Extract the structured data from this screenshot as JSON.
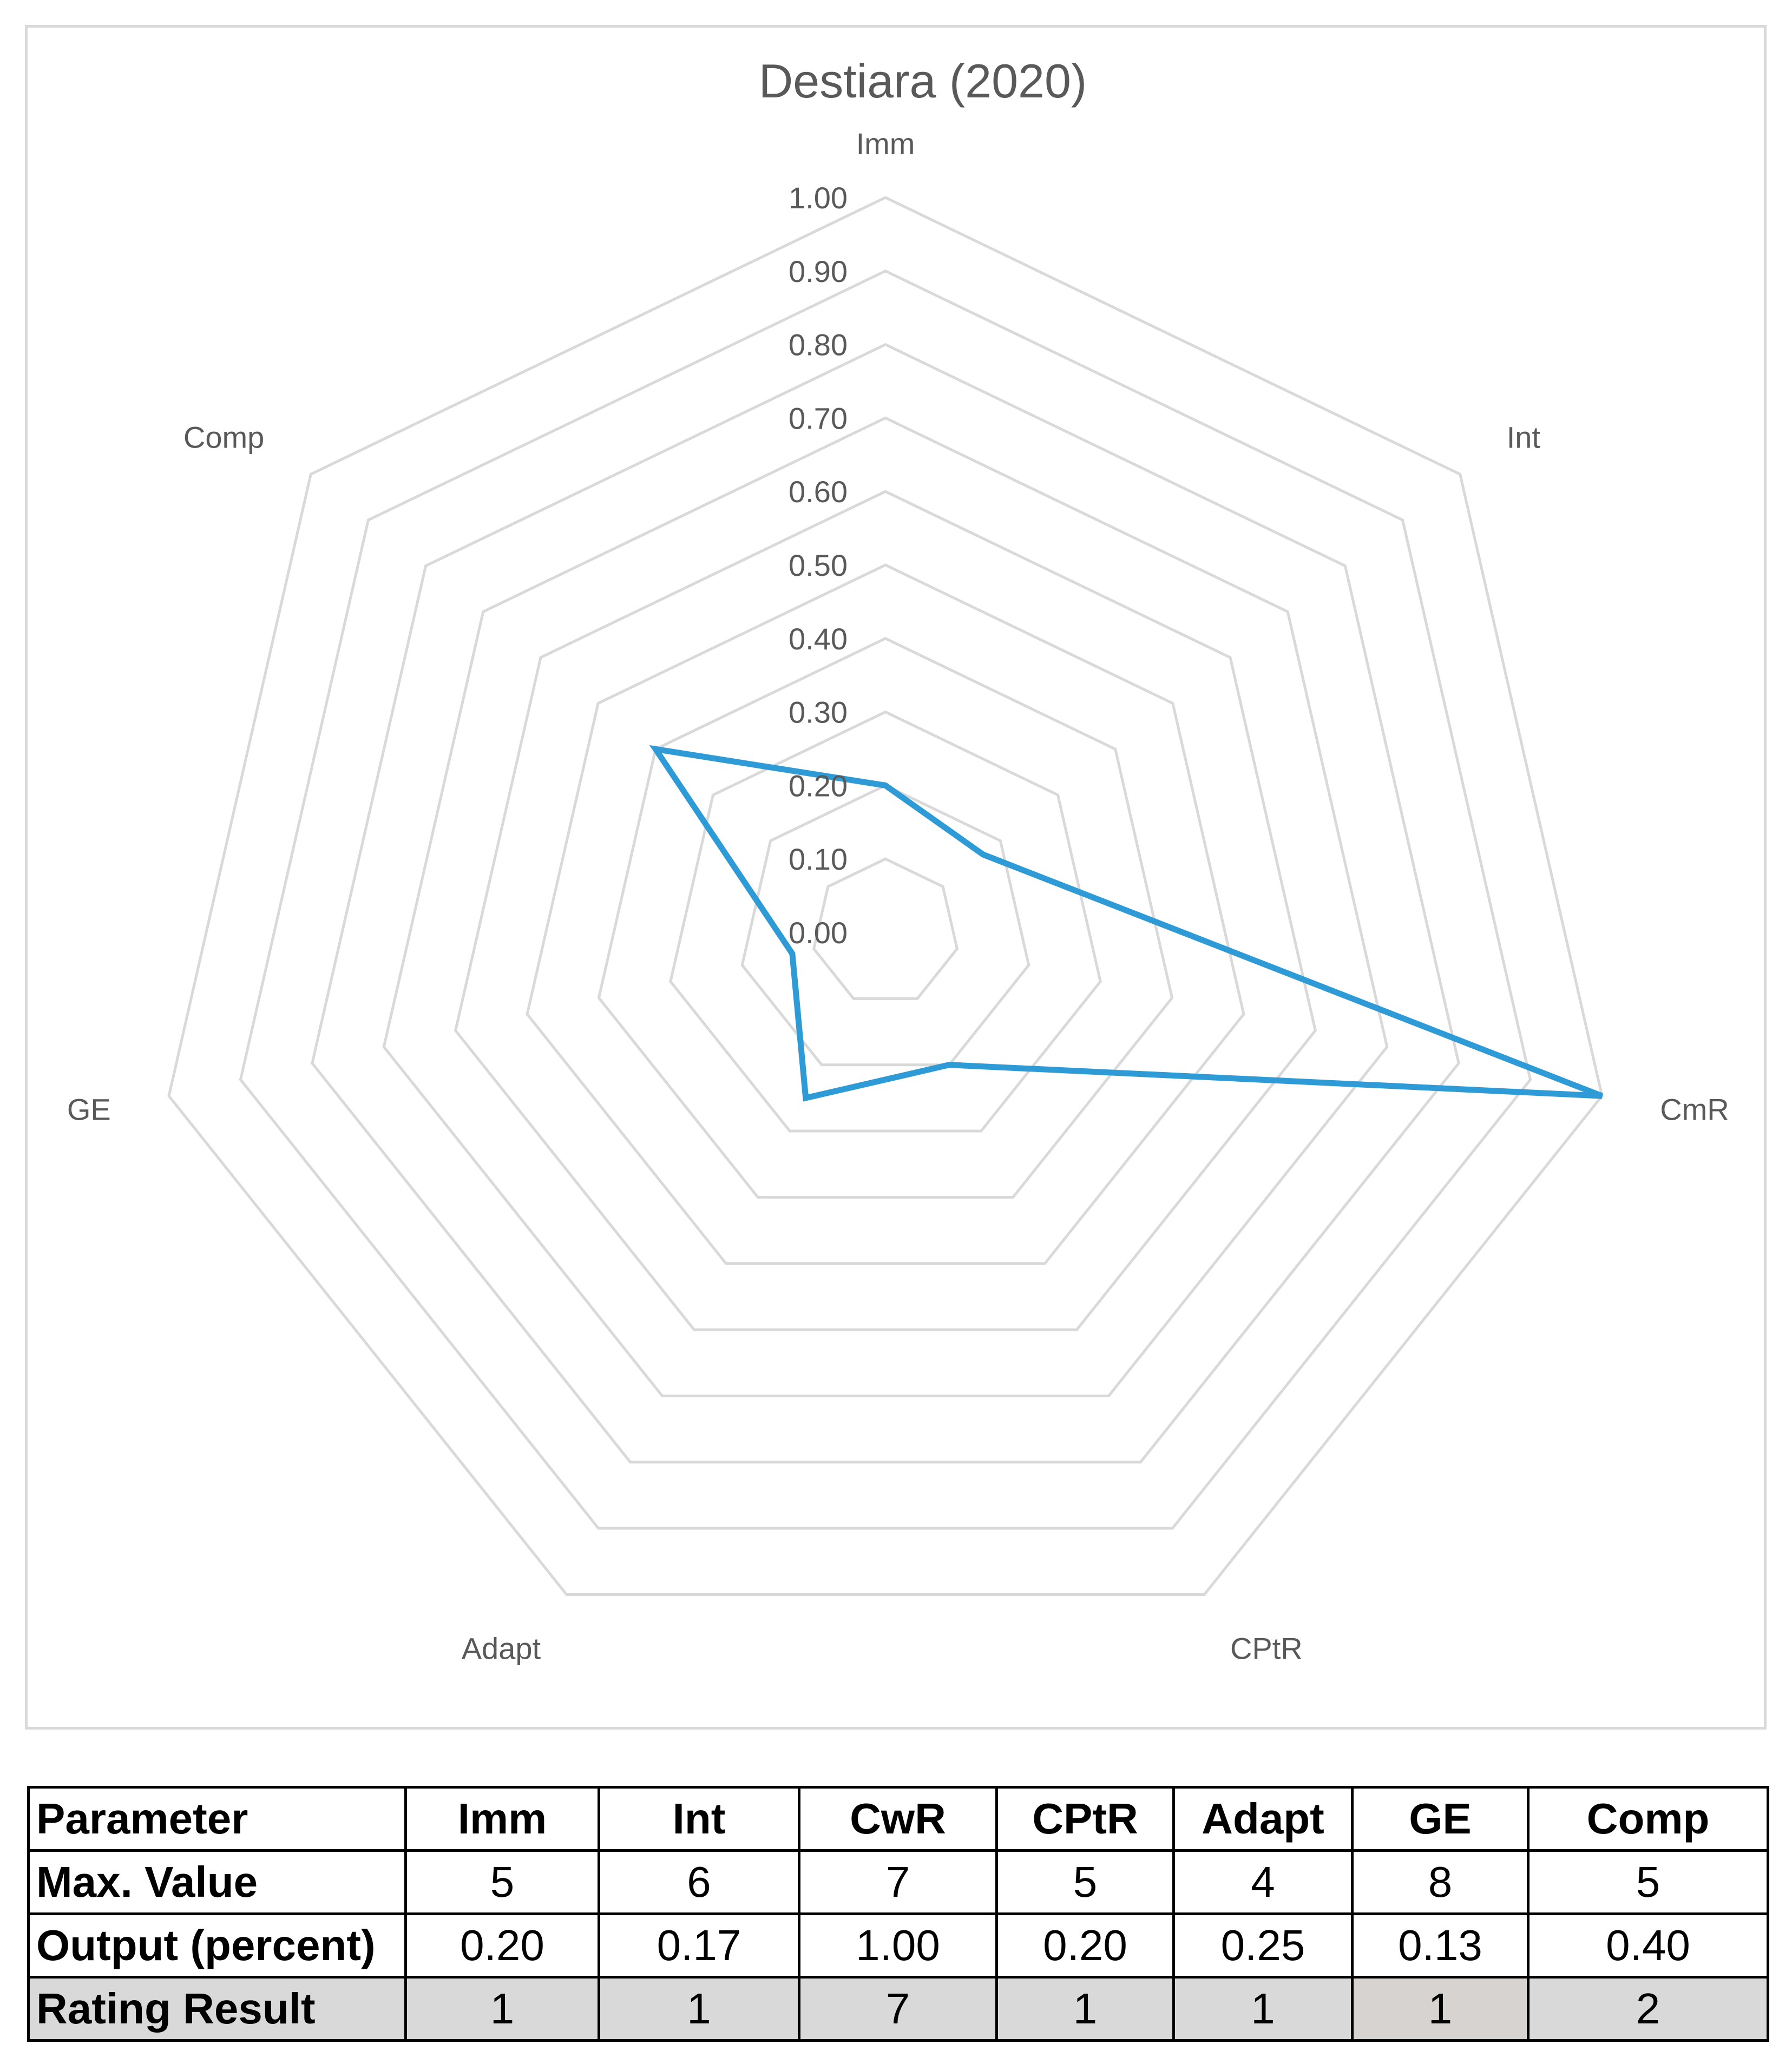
{
  "chart_data": {
    "type": "radar",
    "title": "Destiara (2020)",
    "categories": [
      "Imm",
      "Int",
      "CmR",
      "CPtR",
      "Adapt",
      "GE",
      "Comp"
    ],
    "series": [
      {
        "values": [
          0.2,
          0.17,
          1.0,
          0.2,
          0.25,
          0.13,
          0.4
        ],
        "color": "#2e9bd6"
      }
    ],
    "ylim": [
      0,
      1
    ],
    "ticks": [
      "0.00",
      "0.10",
      "0.20",
      "0.30",
      "0.40",
      "0.50",
      "0.60",
      "0.70",
      "0.80",
      "0.90",
      "1.00"
    ],
    "grid": true,
    "grid_color": "#d9d9d9",
    "legend": "none"
  },
  "table": {
    "header": [
      "Parameter",
      "Imm",
      "Int",
      "CwR",
      "CPtR",
      "Adapt",
      "GE",
      "Comp"
    ],
    "rows": [
      [
        "Max. Value",
        "5",
        "6",
        "7",
        "5",
        "4",
        "8",
        "5"
      ],
      [
        "Output (percent)",
        "0.20",
        "0.17",
        "1.00",
        "0.20",
        "0.25",
        "0.13",
        "0.40"
      ],
      [
        "Rating Result",
        "1",
        "1",
        "7",
        "1",
        "1",
        "1",
        "2"
      ]
    ]
  }
}
